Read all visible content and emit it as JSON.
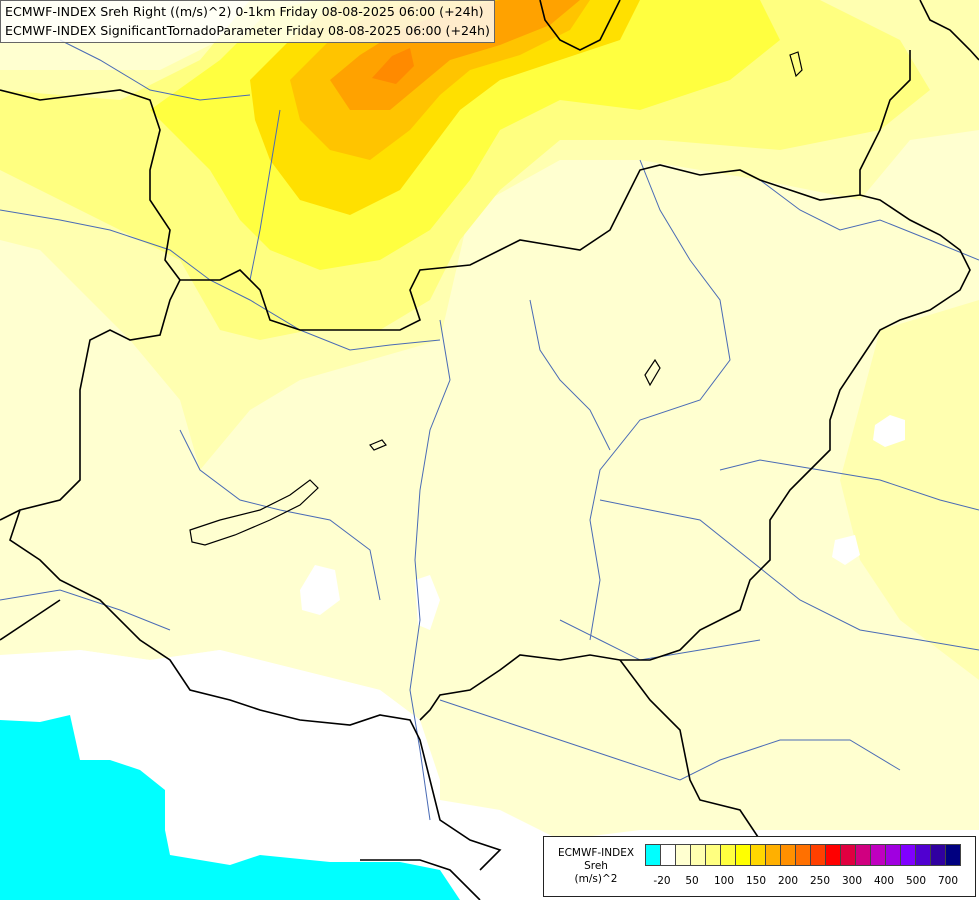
{
  "header": {
    "line1": "ECMWF-INDEX Sreh Right ((m/s)^2) 0-1km Friday 08-08-2025 06:00 (+24h)",
    "line2": "ECMWF-INDEX SignificantTornadoParameter Friday 08-08-2025 06:00 (+24h)"
  },
  "legend": {
    "title_line1": "ECMWF-INDEX",
    "title_line2": "Sreh",
    "title_line3": "(m/s)^2",
    "colors": [
      "#00ffff",
      "#ffffff",
      "#ffffd0",
      "#ffffb0",
      "#ffff80",
      "#ffff40",
      "#ffff00",
      "#ffd700",
      "#ffb000",
      "#ff9000",
      "#ff7000",
      "#ff4000",
      "#ff0000",
      "#e00040",
      "#d00080",
      "#c000c0",
      "#a000e0",
      "#8000ff",
      "#5000d0",
      "#3000a0",
      "#000080"
    ],
    "tick_labels": [
      "-20",
      "50",
      "100",
      "150",
      "200",
      "250",
      "300",
      "400",
      "500",
      "700"
    ]
  },
  "map_colors": {
    "background": "#ffffff",
    "level1": "#ffffd0",
    "level2": "#ffffb0",
    "level3": "#ffff80",
    "level4": "#ffff40",
    "level5": "#ffe000",
    "level6": "#ffc400",
    "level7": "#ffa200",
    "level8": "#ff8a00",
    "negative": "#00ffff",
    "border": "#000000",
    "river": "#4a6bb5"
  }
}
